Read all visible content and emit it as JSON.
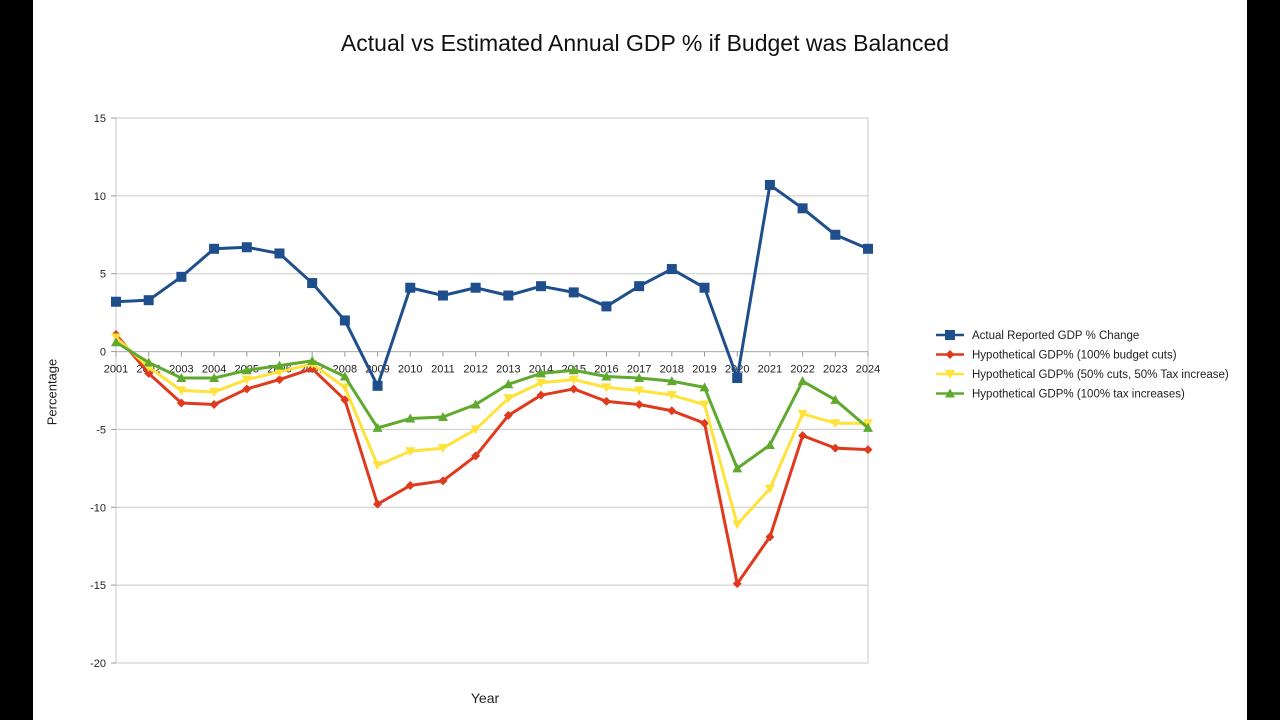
{
  "chart_data": {
    "type": "line",
    "title": "Actual vs Estimated Annual GDP % if Budget was Balanced",
    "xlabel": "Year",
    "ylabel": "Percentage",
    "ylim": [
      -20,
      15
    ],
    "yticks": [
      15,
      10,
      5,
      0,
      -5,
      -10,
      -15,
      -20
    ],
    "grid": true,
    "legend_position": "right",
    "categories": [
      "2001",
      "2002",
      "2003",
      "2004",
      "2005",
      "2006",
      "2007",
      "2008",
      "2009",
      "2010",
      "2011",
      "2012",
      "2013",
      "2014",
      "2015",
      "2016",
      "2017",
      "2018",
      "2019",
      "2020",
      "2021",
      "2022",
      "2023",
      "2024"
    ],
    "series": [
      {
        "name": "Actual Reported GDP % Change",
        "color": "#1f4e8c",
        "marker": "square",
        "values": [
          3.2,
          3.3,
          4.8,
          6.6,
          6.7,
          6.3,
          4.4,
          2.0,
          -2.2,
          4.1,
          3.6,
          4.1,
          3.6,
          4.2,
          3.8,
          2.9,
          4.2,
          5.3,
          4.1,
          -1.7,
          10.7,
          9.2,
          7.5,
          6.6
        ]
      },
      {
        "name": "Hypothetical GDP% (100% budget cuts)",
        "color": "#e03a1e",
        "marker": "diamond",
        "values": [
          1.1,
          -1.4,
          -3.3,
          -3.4,
          -2.4,
          -1.8,
          -1.1,
          -3.1,
          -9.8,
          -8.6,
          -8.3,
          -6.7,
          -4.1,
          -2.8,
          -2.4,
          -3.2,
          -3.4,
          -3.8,
          -4.6,
          -14.9,
          -11.9,
          -5.4,
          -6.2,
          -6.3
        ]
      },
      {
        "name": "Hypothetical GDP% (50% cuts, 50% Tax increase)",
        "color": "#ffe23a",
        "marker": "triangle-down",
        "values": [
          0.9,
          -1.0,
          -2.5,
          -2.6,
          -1.8,
          -1.3,
          -0.8,
          -2.3,
          -7.3,
          -6.4,
          -6.2,
          -5.0,
          -3.0,
          -2.0,
          -1.8,
          -2.3,
          -2.5,
          -2.8,
          -3.4,
          -11.1,
          -8.8,
          -4.0,
          -4.6,
          -4.6
        ]
      },
      {
        "name": "Hypothetical GDP% (100% tax increases)",
        "color": "#5ea92e",
        "marker": "triangle-up",
        "values": [
          0.6,
          -0.7,
          -1.7,
          -1.7,
          -1.2,
          -0.9,
          -0.6,
          -1.6,
          -4.9,
          -4.3,
          -4.2,
          -3.4,
          -2.1,
          -1.4,
          -1.2,
          -1.6,
          -1.7,
          -1.9,
          -2.3,
          -7.5,
          -6.0,
          -1.9,
          -3.1,
          -4.9
        ]
      }
    ]
  }
}
